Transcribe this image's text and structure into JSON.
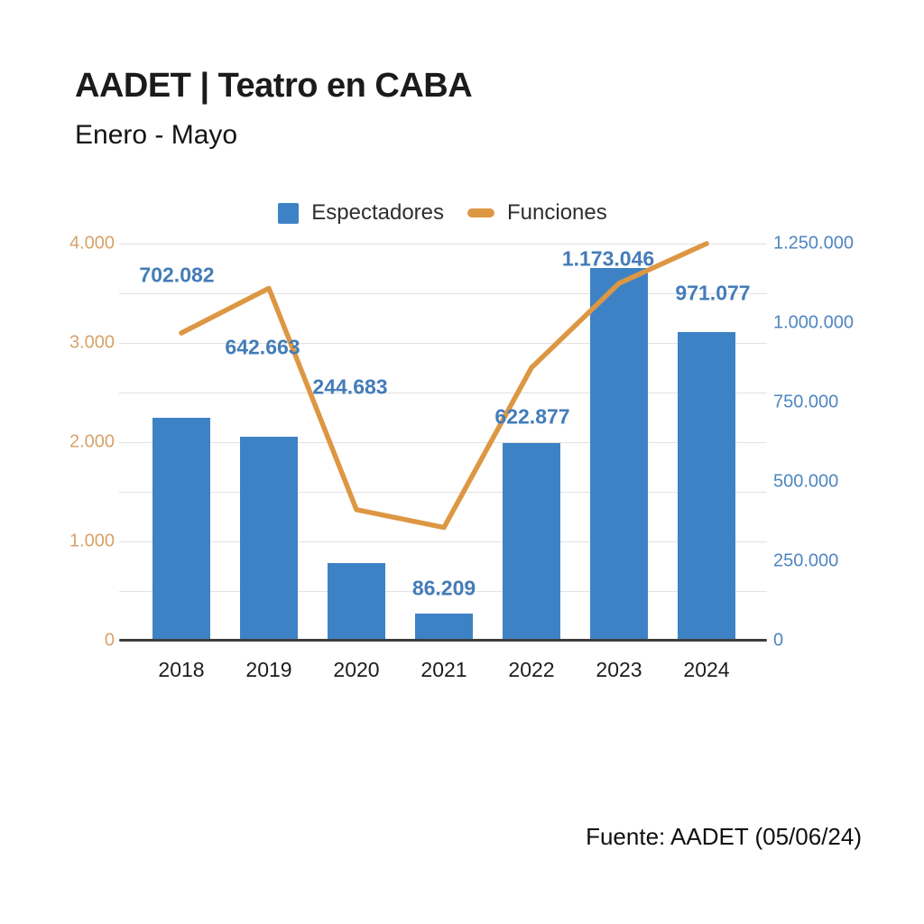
{
  "header": {
    "title": "AADET | Teatro en CABA",
    "subtitle": "Enero - Mayo"
  },
  "legend": {
    "espectadores_label": "Espectadores",
    "funciones_label": "Funciones"
  },
  "footer": {
    "source": "Fuente: AADET (05/06/24)"
  },
  "colors": {
    "bar_blue": "#3E82C6",
    "line_orange": "#DD9743",
    "left_axis_text": "#D8A268",
    "right_axis_text": "#4E86C0",
    "data_label_blue": "#447CB8",
    "gridline": "#e2e2e2",
    "baseline": "#3e3e3e",
    "background": "#ffffff"
  },
  "chart_data": {
    "type": "combo (bar + line)",
    "title": "AADET | Teatro en CABA",
    "subtitle": "Enero - Mayo",
    "categories": [
      "2018",
      "2019",
      "2020",
      "2021",
      "2022",
      "2023",
      "2024"
    ],
    "series": [
      {
        "name": "Espectadores",
        "type": "bar",
        "axis": "right",
        "color": "#3E82C6",
        "values": [
          702082,
          642663,
          244683,
          86209,
          622877,
          1173046,
          971077
        ],
        "labels": [
          "702.082",
          "642.663",
          "244.683",
          "86.209",
          "622.877",
          "1.173.046",
          "971.077"
        ]
      },
      {
        "name": "Funciones",
        "type": "line",
        "axis": "left",
        "color": "#DD9743",
        "values_estimated": [
          3100,
          3550,
          1320,
          1140,
          2750,
          3600,
          4000
        ]
      }
    ],
    "left_axis": {
      "series": "Funciones",
      "range": [
        0,
        4000
      ],
      "tick_labels": [
        "0",
        "1.000",
        "2.000",
        "3.000",
        "4.000"
      ],
      "tick_values": [
        0,
        1000,
        2000,
        3000,
        4000
      ]
    },
    "right_axis": {
      "series": "Espectadores",
      "range": [
        0,
        1250000
      ],
      "tick_labels": [
        "0",
        "250.000",
        "500.000",
        "750.000",
        "1.000.000",
        "1.250.000"
      ],
      "tick_values": [
        0,
        250000,
        500000,
        750000,
        1000000,
        1250000
      ]
    },
    "grid": {
      "horizontal": true,
      "step_left_axis_units": 500
    },
    "legend_position": "top",
    "source_note": "Fuente: AADET (05/06/24)"
  }
}
